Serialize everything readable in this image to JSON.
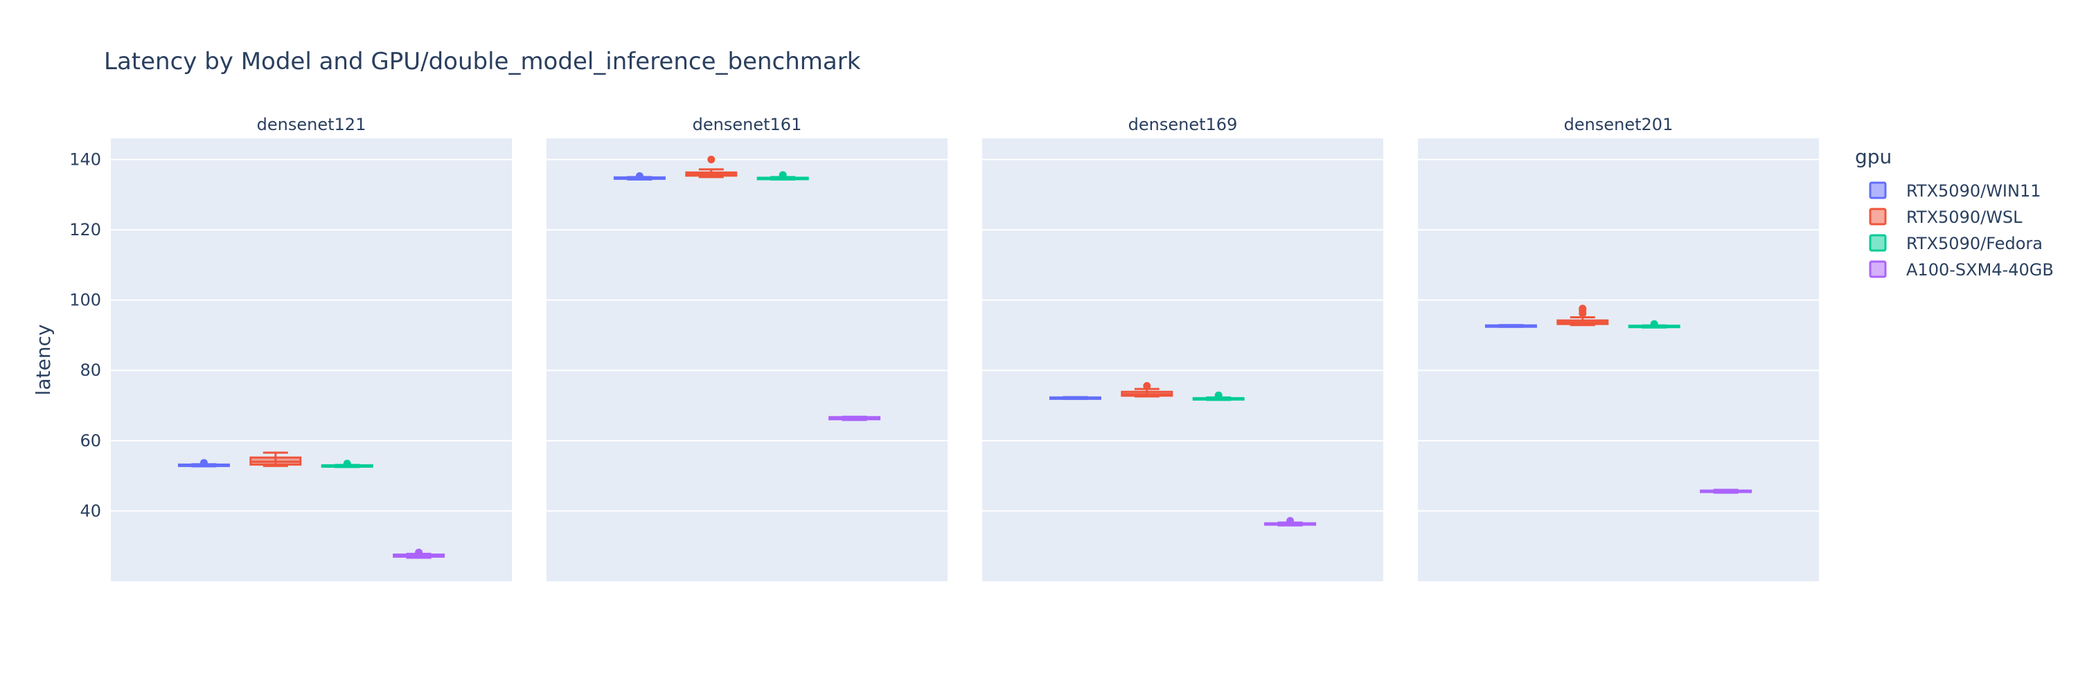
{
  "chart_data": {
    "type": "box",
    "title": "Latency by Model and GPU/double_model_inference_benchmark",
    "ylabel": "latency",
    "ylim": [
      20,
      146
    ],
    "yticks": [
      40,
      60,
      80,
      100,
      120,
      140
    ],
    "grid": true,
    "legend": {
      "title": "gpu",
      "placement": "right"
    },
    "facets": [
      "densenet121",
      "densenet161",
      "densenet169",
      "densenet201"
    ],
    "series": [
      {
        "name": "RTX5090/WIN11",
        "color": "#636efa",
        "boxes": [
          {
            "facet": "densenet121",
            "min": 52.7,
            "q1": 52.8,
            "median": 53.0,
            "q3": 53.2,
            "max": 53.3,
            "outliers": [
              53.7
            ]
          },
          {
            "facet": "densenet161",
            "min": 134.3,
            "q1": 134.5,
            "median": 134.7,
            "q3": 134.9,
            "max": 135.0,
            "outliers": [
              135.3
            ]
          },
          {
            "facet": "densenet169",
            "min": 71.9,
            "q1": 72.0,
            "median": 72.1,
            "q3": 72.3,
            "max": 72.4,
            "outliers": []
          },
          {
            "facet": "densenet201",
            "min": 92.4,
            "q1": 92.5,
            "median": 92.6,
            "q3": 92.8,
            "max": 92.9,
            "outliers": []
          }
        ]
      },
      {
        "name": "RTX5090/WSL",
        "color": "#ef553b",
        "boxes": [
          {
            "facet": "densenet121",
            "min": 52.8,
            "q1": 53.2,
            "median": 54.0,
            "q3": 55.2,
            "max": 56.6,
            "outliers": []
          },
          {
            "facet": "densenet161",
            "min": 135.0,
            "q1": 135.4,
            "median": 135.8,
            "q3": 136.3,
            "max": 137.2,
            "outliers": [
              140.0
            ]
          },
          {
            "facet": "densenet169",
            "min": 72.6,
            "q1": 72.8,
            "median": 73.2,
            "q3": 73.9,
            "max": 74.7,
            "outliers": [
              75.6
            ]
          },
          {
            "facet": "densenet201",
            "min": 92.9,
            "q1": 93.2,
            "median": 93.6,
            "q3": 94.2,
            "max": 95.1,
            "outliers": [
              96.2,
              97.0,
              97.6
            ]
          }
        ]
      },
      {
        "name": "RTX5090/Fedora",
        "color": "#00cc96",
        "boxes": [
          {
            "facet": "densenet121",
            "min": 52.5,
            "q1": 52.6,
            "median": 52.8,
            "q3": 53.0,
            "max": 53.1,
            "outliers": [
              53.5
            ]
          },
          {
            "facet": "densenet161",
            "min": 134.3,
            "q1": 134.4,
            "median": 134.6,
            "q3": 134.8,
            "max": 135.0,
            "outliers": [
              135.6
            ]
          },
          {
            "facet": "densenet169",
            "min": 71.6,
            "q1": 71.8,
            "median": 71.9,
            "q3": 72.1,
            "max": 72.3,
            "outliers": [
              72.9
            ]
          },
          {
            "facet": "densenet201",
            "min": 92.2,
            "q1": 92.3,
            "median": 92.5,
            "q3": 92.7,
            "max": 92.8,
            "outliers": [
              93.2
            ]
          }
        ]
      },
      {
        "name": "A100-SXM4-40GB",
        "color": "#ab63fa",
        "boxes": [
          {
            "facet": "densenet121",
            "min": 26.7,
            "q1": 27.0,
            "median": 27.3,
            "q3": 27.6,
            "max": 27.8,
            "outliers": [
              28.2
            ]
          },
          {
            "facet": "densenet161",
            "min": 65.9,
            "q1": 66.1,
            "median": 66.4,
            "q3": 66.7,
            "max": 66.8,
            "outliers": []
          },
          {
            "facet": "densenet169",
            "min": 35.9,
            "q1": 36.1,
            "median": 36.3,
            "q3": 36.5,
            "max": 36.7,
            "outliers": [
              37.2
            ]
          },
          {
            "facet": "densenet201",
            "min": 45.2,
            "q1": 45.4,
            "median": 45.6,
            "q3": 45.8,
            "max": 46.0,
            "outliers": []
          }
        ]
      }
    ]
  }
}
